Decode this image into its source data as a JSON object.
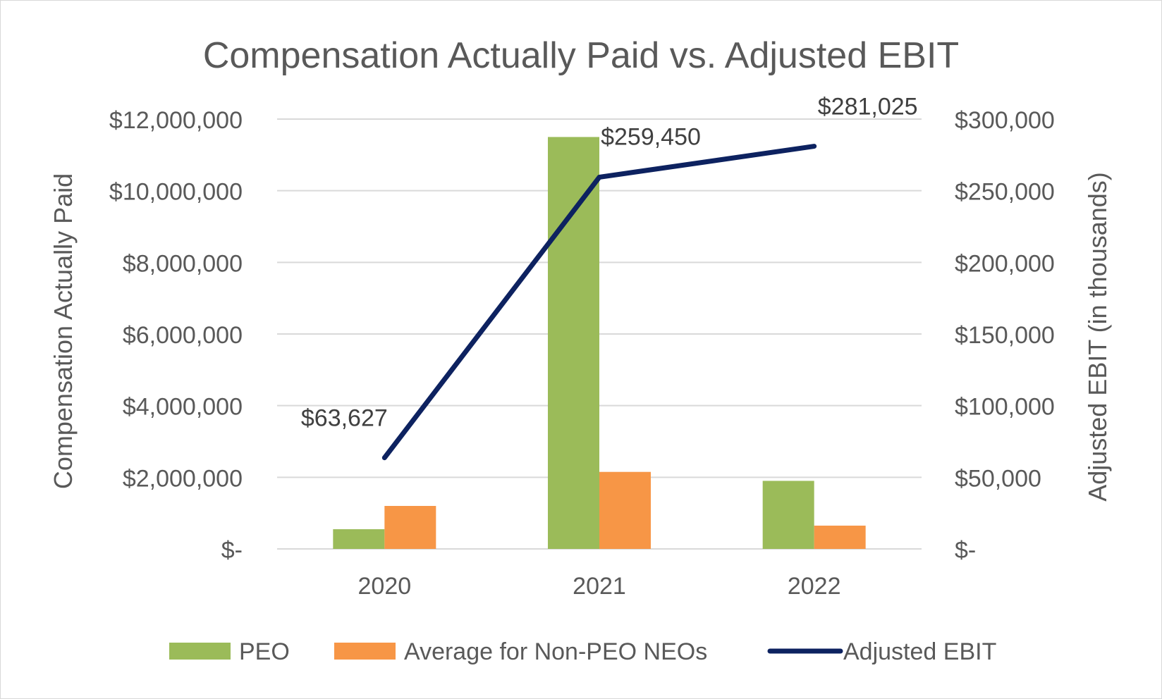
{
  "chart_data": {
    "type": "bar+line",
    "title": "Compensation Actually Paid vs. Adjusted EBIT",
    "categories": [
      "2020",
      "2021",
      "2022"
    ],
    "series": [
      {
        "name": "PEO",
        "kind": "bar",
        "axis": "left",
        "color": "#9bbb59",
        "values": [
          550000,
          11500000,
          1900000
        ]
      },
      {
        "name": "Average for Non-PEO NEOs",
        "kind": "bar",
        "axis": "left",
        "color": "#f79646",
        "values": [
          1200000,
          2150000,
          650000
        ]
      },
      {
        "name": "Adjusted EBIT",
        "kind": "line",
        "axis": "right",
        "color": "#0d2260",
        "values": [
          63627,
          259450,
          281025
        ],
        "data_labels": [
          "$63,627",
          "$259,450",
          "$281,025"
        ]
      }
    ],
    "left_axis": {
      "label": "Compensation Actually Paid",
      "range": [
        0,
        12000000
      ],
      "ticks": [
        0,
        2000000,
        4000000,
        6000000,
        8000000,
        10000000,
        12000000
      ],
      "tick_labels": [
        "$-",
        "$2,000,000",
        "$4,000,000",
        "$6,000,000",
        "$8,000,000",
        "$10,000,000",
        "$12,000,000"
      ]
    },
    "right_axis": {
      "label": "Adjusted EBIT (in thousands)",
      "range": [
        0,
        300000
      ],
      "ticks": [
        0,
        50000,
        100000,
        150000,
        200000,
        250000,
        300000
      ],
      "tick_labels": [
        "$-",
        "$50,000",
        "$100,000",
        "$150,000",
        "$200,000",
        "$250,000",
        "$300,000"
      ]
    },
    "grid": true,
    "legend": "bottom",
    "legend_labels": [
      "PEO",
      "Average for Non-PEO NEOs",
      "Adjusted EBIT"
    ]
  }
}
